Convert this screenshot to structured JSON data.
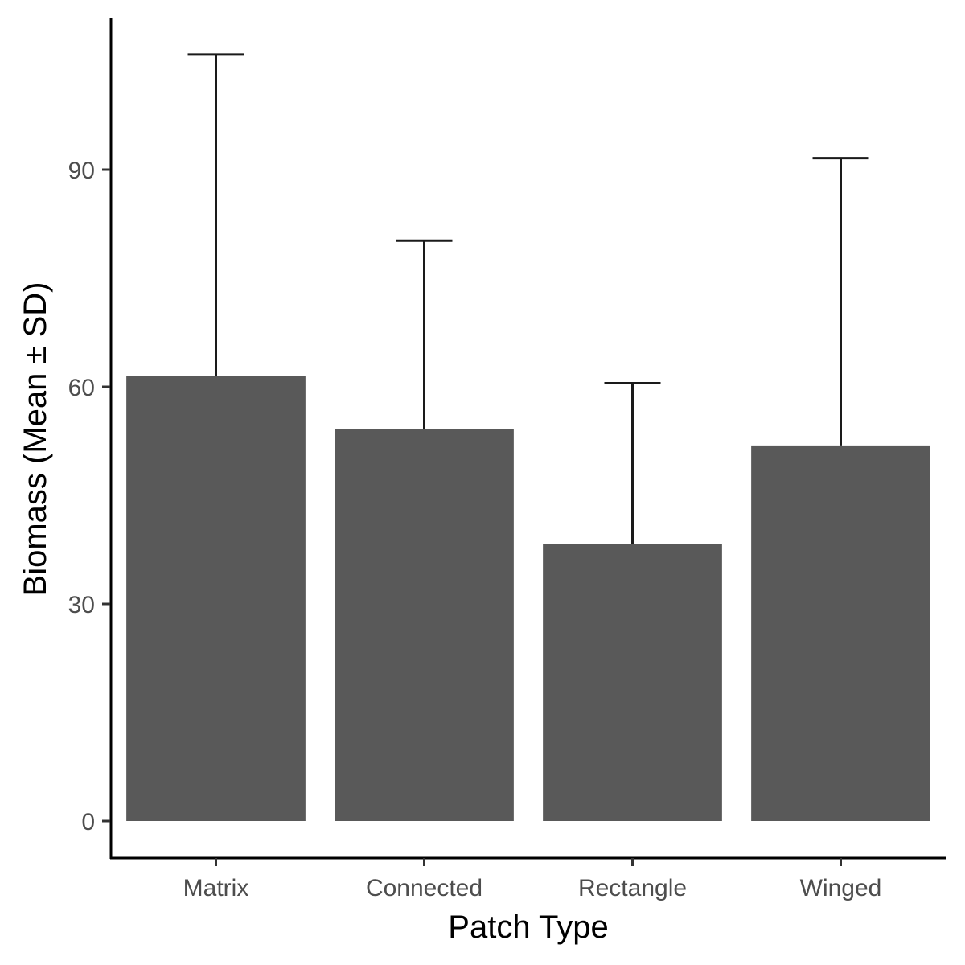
{
  "chart_data": {
    "type": "bar",
    "title": "",
    "xlabel": "Patch Type",
    "ylabel": "Biomass (Mean ± SD)",
    "categories": [
      "Matrix",
      "Connected",
      "Rectangle",
      "Winged"
    ],
    "values": [
      61.5,
      54.2,
      38.3,
      51.9
    ],
    "error_upper": [
      105.9,
      80.2,
      60.5,
      91.6
    ],
    "yticks": [
      0,
      30,
      60,
      90
    ],
    "ytick_labels": [
      "0",
      "30",
      "60",
      "90"
    ],
    "ylim": [
      -5,
      111
    ],
    "grid": false,
    "legend": "none",
    "bar_color": "#595959",
    "error_bar_color": "#1a1a1a"
  }
}
